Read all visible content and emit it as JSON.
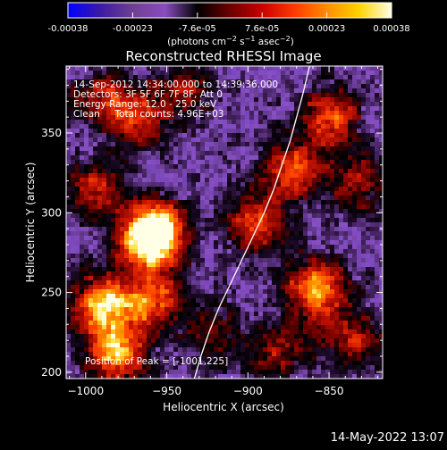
{
  "colorbar": {
    "ticks": [
      "-0.00038",
      "-0.00023",
      "-7.6e-05",
      "7.6e-05",
      "0.00023",
      "0.00038"
    ],
    "units_label": "(photons cm^-2 s^-1 asec^-2)",
    "colors": [
      "#0000ff",
      "#3c1aa6",
      "#6f3f92",
      "#8a4cc0",
      "#000000",
      "#6b0000",
      "#c80000",
      "#ff3a00",
      "#ff8c00",
      "#ffd200",
      "#ffffe6"
    ]
  },
  "chart_data": {
    "type": "heatmap",
    "title": "Reconstructed RHESSI Image",
    "xlabel": "Heliocentric X (arcsec)",
    "ylabel": "Heliocentric Y (arcsec)",
    "xlim": [
      -1012,
      -817
    ],
    "ylim": [
      196,
      392
    ],
    "xticks": [
      -1000,
      -950,
      -900,
      -850
    ],
    "xtick_labels": [
      "−1000",
      "−950",
      "−900",
      "−850"
    ],
    "yticks": [
      200,
      250,
      300,
      350
    ],
    "ytick_labels": [
      "200",
      "250",
      "300",
      "350"
    ],
    "annotations": [
      "14-Sep-2012 14:34:00.000 to 14:39:36.000",
      "Detectors: 3F 5F 6F 7F 8F, Att 0",
      "Energy Range: 12.0 - 25.0 keV",
      "Clean     Total counts: 4.96E+03"
    ],
    "peak_label": "Position of Peak = [-1001,225]",
    "limb_curve": [
      [
        -933,
        196
      ],
      [
        -929,
        210
      ],
      [
        -924,
        225
      ],
      [
        -918,
        240
      ],
      [
        -911,
        255
      ],
      [
        -904,
        270
      ],
      [
        -897,
        285
      ],
      [
        -890,
        300
      ],
      [
        -884,
        315
      ],
      [
        -879,
        330
      ],
      [
        -874,
        345
      ],
      [
        -870,
        360
      ],
      [
        -866,
        375
      ],
      [
        -862,
        392
      ]
    ],
    "hot_regions": [
      {
        "x": -990,
        "y": 242,
        "intensity": 1.0
      },
      {
        "x": -981,
        "y": 212,
        "intensity": 0.95
      },
      {
        "x": -958,
        "y": 245,
        "intensity": 0.8
      },
      {
        "x": -963,
        "y": 282,
        "intensity": 0.95
      },
      {
        "x": -955,
        "y": 290,
        "intensity": 0.85
      },
      {
        "x": -993,
        "y": 315,
        "intensity": 0.55
      },
      {
        "x": -968,
        "y": 358,
        "intensity": 0.65
      },
      {
        "x": -990,
        "y": 372,
        "intensity": 0.5
      },
      {
        "x": -940,
        "y": 376,
        "intensity": 0.45
      },
      {
        "x": -895,
        "y": 294,
        "intensity": 0.75
      },
      {
        "x": -858,
        "y": 252,
        "intensity": 0.95
      },
      {
        "x": -872,
        "y": 327,
        "intensity": 0.75
      },
      {
        "x": -850,
        "y": 360,
        "intensity": 0.75
      },
      {
        "x": -832,
        "y": 320,
        "intensity": 0.5
      },
      {
        "x": -835,
        "y": 220,
        "intensity": 0.55
      },
      {
        "x": -882,
        "y": 213,
        "intensity": 0.5
      },
      {
        "x": -919,
        "y": 224,
        "intensity": 0.4
      }
    ]
  },
  "footer_timestamp": "14-May-2022 13:07"
}
